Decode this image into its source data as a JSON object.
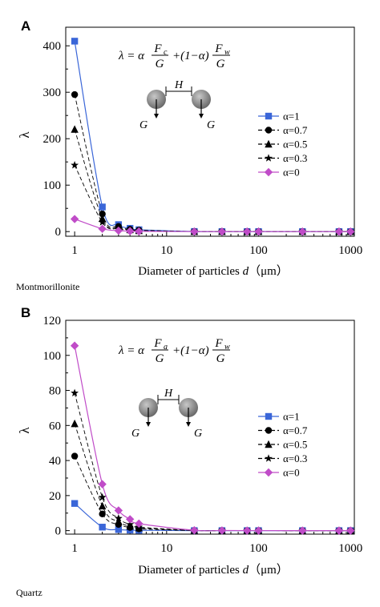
{
  "chart_data": [
    {
      "type": "line",
      "panel": "A",
      "caption": "Montmorillonite",
      "xlabel_prefix": "Diameter of particles",
      "xlabel_var": "d",
      "xlabel_unit": "（μm）",
      "ylabel": "λ",
      "x_scale": "log",
      "xlim": [
        0.8,
        1100
      ],
      "ylim": [
        -10,
        440
      ],
      "x_ticks": [
        1,
        10,
        100,
        1000
      ],
      "x_tick_labels": [
        "1",
        "10",
        "100",
        "1000"
      ],
      "y_ticks": [
        0,
        100,
        200,
        300,
        400
      ],
      "y_tick_labels": [
        "0",
        "100",
        "200",
        "300",
        "400"
      ],
      "grid": false,
      "legend_position": "right",
      "formula": {
        "lhs": "λ = α",
        "frac1_num": "F",
        "frac1_sub": "c",
        "frac1_den": "G",
        "mid": "+(1−α)",
        "frac2_num": "F",
        "frac2_sub": "w",
        "frac2_den": "G"
      },
      "sketch": {
        "gap_label": "H",
        "left_label": "G",
        "right_label": "G"
      },
      "x": [
        1,
        2,
        3,
        4,
        5,
        20,
        40,
        75,
        100,
        300,
        750,
        1000
      ],
      "series": [
        {
          "name": "α=1",
          "color": "#3a66d8",
          "marker": "square",
          "style": "solid",
          "values": [
            410,
            53,
            15,
            7,
            4,
            0.2,
            0.1,
            0.05,
            0.04,
            0.01,
            0.01,
            0
          ]
        },
        {
          "name": "α=0.7",
          "color": "#000000",
          "marker": "circle",
          "style": "dashed",
          "values": [
            295,
            38,
            11,
            5,
            3,
            0.2,
            0.1,
            0.05,
            0.03,
            0.01,
            0.01,
            0
          ]
        },
        {
          "name": "α=0.5",
          "color": "#000000",
          "marker": "triangle",
          "style": "dashed",
          "values": [
            220,
            28,
            8,
            4,
            2,
            0.1,
            0.05,
            0.03,
            0.02,
            0.01,
            0,
            0
          ]
        },
        {
          "name": "α=0.3",
          "color": "#000000",
          "marker": "star",
          "style": "dashed",
          "values": [
            143,
            20,
            6,
            3,
            1.5,
            0.1,
            0.05,
            0.02,
            0.02,
            0.01,
            0,
            0
          ]
        },
        {
          "name": "α=0",
          "color": "#c04cc8",
          "marker": "diamond",
          "style": "solid",
          "values": [
            27,
            6,
            2,
            1,
            0.5,
            0.05,
            0.02,
            0.01,
            0.01,
            0,
            0,
            0
          ]
        }
      ]
    },
    {
      "type": "line",
      "panel": "B",
      "caption": "Quartz",
      "xlabel_prefix": "Diameter of particles",
      "xlabel_var": "d",
      "xlabel_unit": "（μm）",
      "ylabel": "λ",
      "x_scale": "log",
      "xlim": [
        0.8,
        1100
      ],
      "ylim": [
        -2,
        120
      ],
      "x_ticks": [
        1,
        10,
        100,
        1000
      ],
      "x_tick_labels": [
        "1",
        "10",
        "100",
        "1000"
      ],
      "y_ticks": [
        0,
        20,
        40,
        60,
        80,
        100,
        120
      ],
      "y_tick_labels": [
        "0",
        "20",
        "40",
        "60",
        "80",
        "100",
        "120"
      ],
      "grid": false,
      "legend_position": "right",
      "formula": {
        "lhs": "λ = α",
        "frac1_num": "F",
        "frac1_sub": "a",
        "frac1_den": "G",
        "mid": "+(1−α)",
        "frac2_num": "F",
        "frac2_sub": "w",
        "frac2_den": "G"
      },
      "sketch": {
        "gap_label": "H",
        "left_label": "G",
        "right_label": "G"
      },
      "x": [
        1,
        2,
        3,
        4,
        5,
        20,
        40,
        75,
        100,
        300,
        750,
        1000
      ],
      "series": [
        {
          "name": "α=1",
          "color": "#3a66d8",
          "marker": "square",
          "style": "solid",
          "values": [
            15.5,
            2,
            0.6,
            0.3,
            0.2,
            0.01,
            0.01,
            0,
            0,
            0,
            0,
            0
          ]
        },
        {
          "name": "α=0.7",
          "color": "#000000",
          "marker": "circle",
          "style": "dashed",
          "values": [
            42.5,
            9.5,
            3.5,
            1.8,
            1,
            0.05,
            0.02,
            0.01,
            0.01,
            0,
            0,
            0
          ]
        },
        {
          "name": "α=0.5",
          "color": "#000000",
          "marker": "triangle",
          "style": "dashed",
          "values": [
            61,
            14,
            5,
            2.5,
            1.5,
            0.08,
            0.03,
            0.01,
            0.01,
            0,
            0,
            0
          ]
        },
        {
          "name": "α=0.3",
          "color": "#000000",
          "marker": "star",
          "style": "dashed",
          "values": [
            78.5,
            19,
            7,
            3.5,
            2,
            0.1,
            0.04,
            0.02,
            0.01,
            0,
            0,
            0
          ]
        },
        {
          "name": "α=0",
          "color": "#c04cc8",
          "marker": "diamond",
          "style": "solid",
          "values": [
            105.5,
            26.5,
            11.5,
            6.5,
            4,
            0.2,
            0.08,
            0.03,
            0.02,
            0,
            0,
            0
          ]
        }
      ]
    }
  ]
}
